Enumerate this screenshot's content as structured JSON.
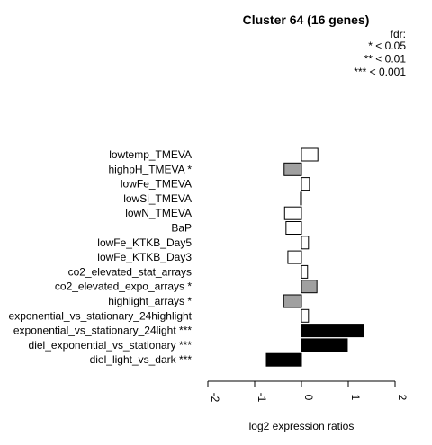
{
  "chart_data": {
    "type": "bar",
    "orientation": "horizontal",
    "title": "Cluster 64 (16 genes)",
    "xlabel": "log2 expression ratios",
    "ylabel": "",
    "xlim": [
      -2,
      2
    ],
    "xticks": [
      "-2",
      "-1",
      "0",
      "1",
      "2"
    ],
    "legend": {
      "title": "fdr:",
      "entries": [
        "* < 0.05",
        "** < 0.01",
        "*** < 0.001"
      ],
      "placement": "top-right"
    },
    "categories": [
      "lowtemp_TMEVA",
      "highpH_TMEVA *",
      "lowFe_TMEVA",
      "lowSi_TMEVA",
      "lowN_TMEVA",
      "BaP",
      "lowFe_KTKB_Day5",
      "lowFe_KTKB_Day3",
      "co2_elevated_stat_arrays",
      "co2_elevated_expo_arrays *",
      "highlight_arrays *",
      "exponential_vs_stationary_24highlight",
      "exponential_vs_stationary_24light ***",
      "diel_exponential_vs_stationary ***",
      "diel_light_vs_dark ***"
    ],
    "values": [
      0.35,
      -0.37,
      0.17,
      -0.02,
      -0.36,
      -0.33,
      0.15,
      -0.29,
      0.13,
      0.33,
      -0.38,
      0.15,
      1.32,
      0.98,
      -0.75
    ],
    "fills": [
      "white",
      "grey",
      "white",
      "white",
      "white",
      "white",
      "white",
      "white",
      "white",
      "grey",
      "grey",
      "white",
      "black",
      "black",
      "black"
    ],
    "colors": {
      "white": "#ffffff",
      "grey": "#a0a0a0",
      "black": "#000000",
      "stroke": "#000000"
    }
  }
}
